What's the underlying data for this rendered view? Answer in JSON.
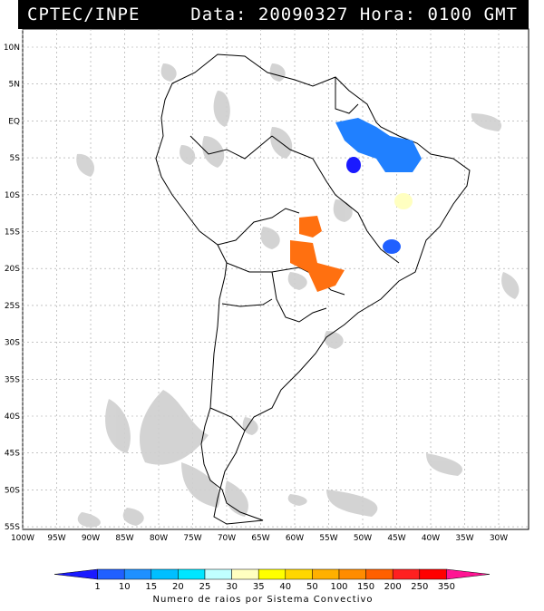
{
  "header": {
    "agency": "CPTEC/INPE",
    "datetime": "Data: 20090327 Hora: 0100 GMT"
  },
  "map": {
    "lat_labels": [
      "10N",
      "5N",
      "EQ",
      "5S",
      "10S",
      "15S",
      "20S",
      "25S",
      "30S",
      "35S",
      "40S",
      "45S",
      "50S",
      "55S"
    ],
    "lon_labels": [
      "100W",
      "95W",
      "90W",
      "85W",
      "80W",
      "75W",
      "70W",
      "65W",
      "60W",
      "55W",
      "50W",
      "45W",
      "40W",
      "35W",
      "30W"
    ],
    "colors": {
      "cloud": "#c8c8c8",
      "coast": "#000000",
      "grid": "#a0a0a0"
    }
  },
  "colorbar": {
    "ticks": [
      "1",
      "10",
      "15",
      "20",
      "25",
      "30",
      "35",
      "40",
      "50",
      "100",
      "150",
      "200",
      "250",
      "350"
    ],
    "colors": [
      "#1a1aff",
      "#2060ff",
      "#1e90ff",
      "#00bfff",
      "#00e6ff",
      "#c0ffff",
      "#ffffc0",
      "#ffff00",
      "#ffd700",
      "#ffb000",
      "#ff8c00",
      "#ff6000",
      "#ff2020",
      "#ff0000",
      "#ff1493"
    ],
    "label": "Numero de raios por Sistema Convectivo"
  }
}
